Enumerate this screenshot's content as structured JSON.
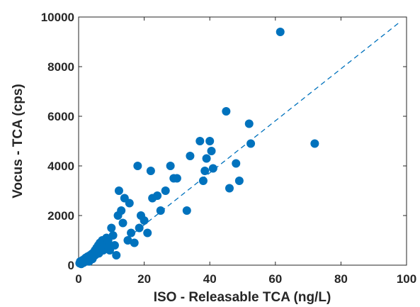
{
  "chart_data": {
    "type": "scatter",
    "title": "",
    "xlabel": "ISO - Releasable TCA (ng/L)",
    "ylabel": "Vocus - TCA  (cps)",
    "xlim": [
      0,
      100
    ],
    "ylim": [
      0,
      10000
    ],
    "xticks": [
      0,
      20,
      40,
      60,
      80,
      100
    ],
    "yticks": [
      0,
      2000,
      4000,
      6000,
      8000,
      10000
    ],
    "grid": false,
    "legend": "none",
    "colors": {
      "marker": "#0072BD",
      "fit_line": "#0072BD",
      "axis": "#262626"
    },
    "series": [
      {
        "points": [
          [
            0.3,
            80
          ],
          [
            0.5,
            150
          ],
          [
            0.8,
            50
          ],
          [
            1.0,
            120
          ],
          [
            1.2,
            200
          ],
          [
            1.5,
            100
          ],
          [
            1.8,
            250
          ],
          [
            2.0,
            180
          ],
          [
            2.2,
            300
          ],
          [
            2.5,
            220
          ],
          [
            2.8,
            350
          ],
          [
            3.0,
            280
          ],
          [
            3.2,
            150
          ],
          [
            3.5,
            400
          ],
          [
            3.8,
            320
          ],
          [
            4.0,
            450
          ],
          [
            4.2,
            250
          ],
          [
            4.5,
            500
          ],
          [
            4.8,
            380
          ],
          [
            5.0,
            600
          ],
          [
            5.2,
            420
          ],
          [
            5.5,
            700
          ],
          [
            5.8,
            550
          ],
          [
            6.0,
            800
          ],
          [
            6.2,
            480
          ],
          [
            6.5,
            900
          ],
          [
            6.8,
            650
          ],
          [
            7.0,
            750
          ],
          [
            7.2,
            1000
          ],
          [
            7.5,
            600
          ],
          [
            7.8,
            850
          ],
          [
            8.0,
            950
          ],
          [
            8.2,
            700
          ],
          [
            8.5,
            1100
          ],
          [
            8.8,
            800
          ],
          [
            9.0,
            1000
          ],
          [
            9.5,
            600
          ],
          [
            10.0,
            1500
          ],
          [
            10.5,
            1200
          ],
          [
            11.0,
            800
          ],
          [
            11.5,
            400
          ],
          [
            12.0,
            2000
          ],
          [
            12.3,
            3000
          ],
          [
            13.0,
            2200
          ],
          [
            13.5,
            1700
          ],
          [
            14.0,
            2700
          ],
          [
            15.0,
            1000
          ],
          [
            15.5,
            2500
          ],
          [
            16.0,
            1300
          ],
          [
            17.0,
            900
          ],
          [
            18.0,
            4000
          ],
          [
            18.5,
            1500
          ],
          [
            19.0,
            2000
          ],
          [
            20.0,
            1800
          ],
          [
            21.0,
            1300
          ],
          [
            22.0,
            3800
          ],
          [
            22.5,
            2700
          ],
          [
            24.0,
            2800
          ],
          [
            25.0,
            2200
          ],
          [
            26.5,
            3000
          ],
          [
            28.0,
            4000
          ],
          [
            29.0,
            3500
          ],
          [
            30.0,
            3500
          ],
          [
            33.0,
            2200
          ],
          [
            34.0,
            4400
          ],
          [
            37.0,
            5000
          ],
          [
            38.0,
            3400
          ],
          [
            38.5,
            3800
          ],
          [
            39.0,
            4300
          ],
          [
            40.0,
            5000
          ],
          [
            40.5,
            4600
          ],
          [
            41.0,
            3900
          ],
          [
            45.0,
            6200
          ],
          [
            46.0,
            3100
          ],
          [
            48.0,
            4100
          ],
          [
            49.0,
            3400
          ],
          [
            52.0,
            5700
          ],
          [
            52.5,
            4900
          ],
          [
            61.5,
            9400
          ],
          [
            72.0,
            4900
          ]
        ]
      },
      {
        "type": "line",
        "style": "dashed",
        "x": [
          15,
          98
        ],
        "y": [
          1100,
          9800
        ]
      }
    ]
  }
}
